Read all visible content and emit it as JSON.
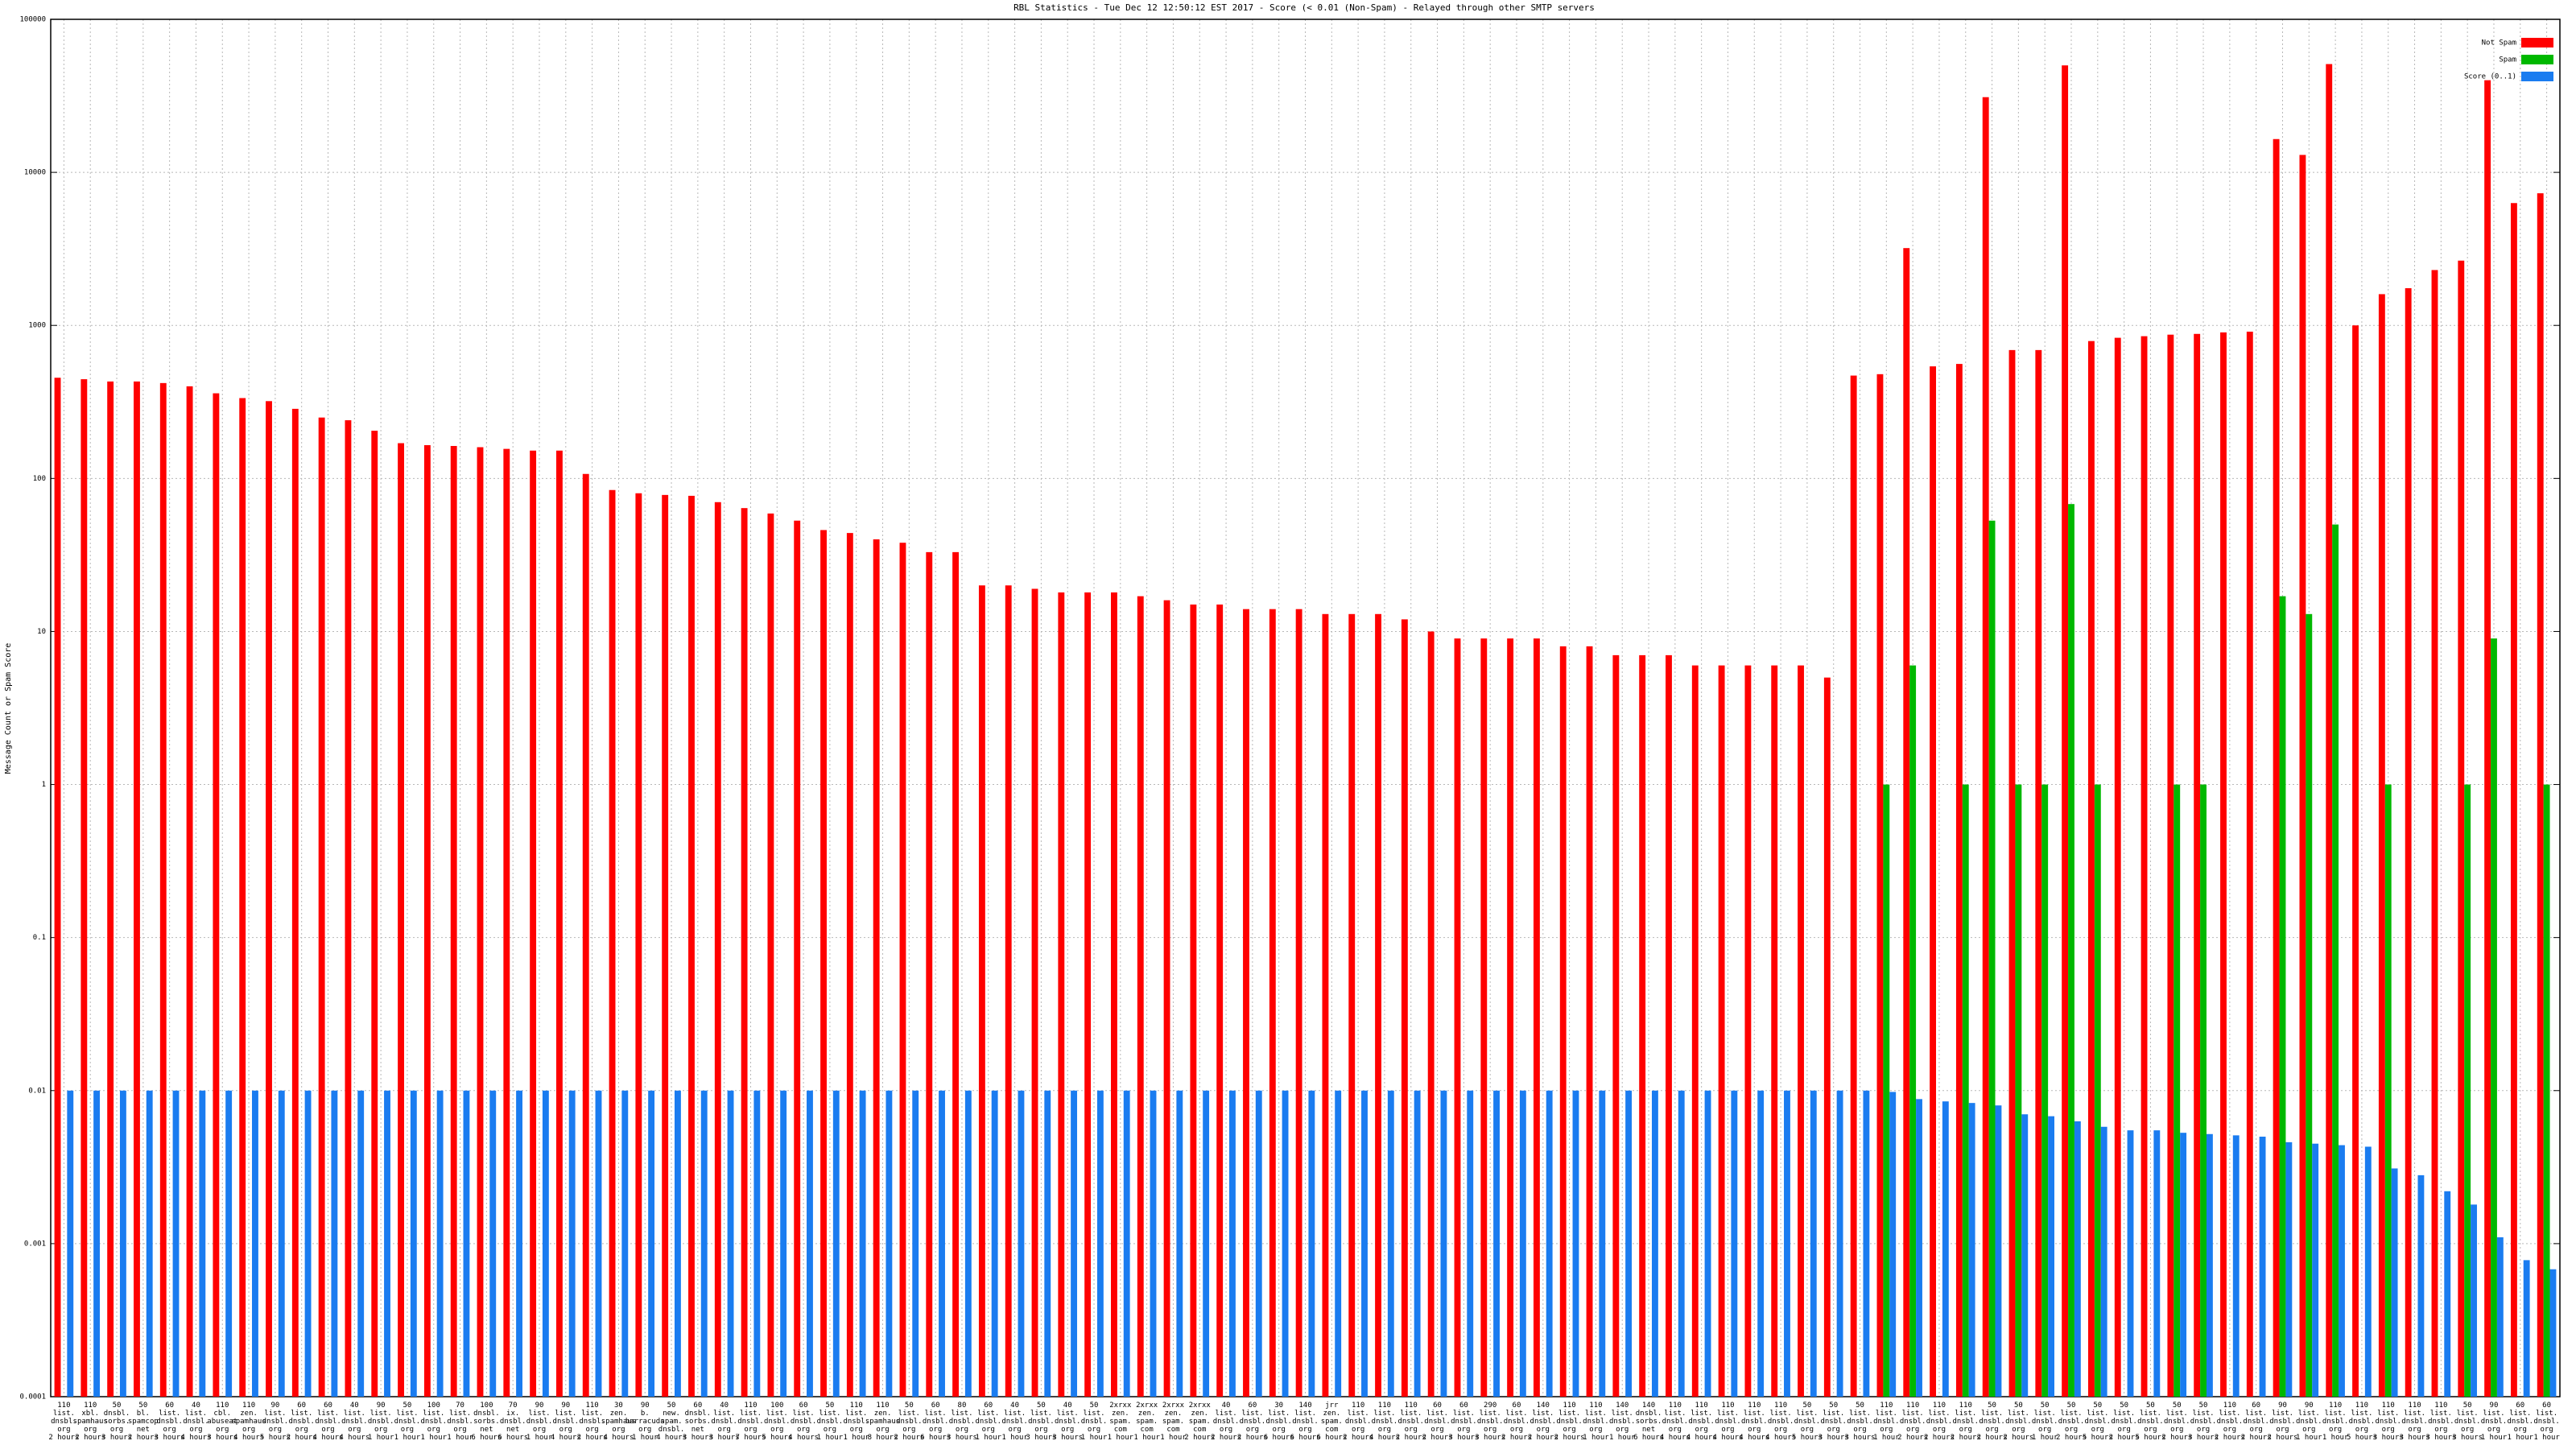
{
  "chart_data": {
    "type": "bar",
    "title": "RBL Statistics - Tue Dec 12 12:50:12 EST 2017 - Score (< 0.01 (Non-Spam) - Relayed through other SMTP servers",
    "ylabel": "Message Count or Spam Score",
    "log_scale": true,
    "grid": true,
    "legend": "upper right",
    "ylim": [
      0.0001,
      100000
    ],
    "yticks": [
      0.0001,
      0.001,
      0.01,
      0.1,
      1,
      10,
      100,
      1000,
      10000,
      100000
    ],
    "categories": [
      "110\nlist.\ndnsbl.\norg\n2 hours",
      "110\nxbl.\nspamhaus\norg\n2 hours",
      "50\ndnsbl.\nsorbs.\norg\n3 hours",
      "50\nbl.\nspamcop\nnet\n2 hours",
      "60\nlist.\ndnsbl.\norg\n3 hours",
      "40\nlist.\ndnsbl.\norg\n4 hours",
      "110\ncbl.\nabuseat\norg\n3 hours",
      "110\nzen.\nspamhaus\norg\n4 hours",
      "90\nlist.\ndnsbl.\norg\n5 hours",
      "60\nlist.\ndnsbl.\norg\n2 hours",
      "60\nlist.\ndnsbl.\norg\n4 hours",
      "40\nlist.\ndnsbl.\norg\n4 hours",
      "90\nlist.\ndnsbl.\norg\n1 hour",
      "50\nlist.\ndnsbl.\norg\n1 hour",
      "100\nlist.\ndnsbl.\norg\n1 hour",
      "70\nlist.\ndnsbl.\norg\n1 hour",
      "100\ndnsbl.\nsorbs.\nnet\n6 hours",
      "70\nix.\ndnsbl.\nnet\n6 hours",
      "90\nlist.\ndnsbl.\norg\n1 hour",
      "90\nlist.\ndnsbl.\norg\n4 hours",
      "110\nlist.\ndnsbl.\norg\n2 hours",
      "30\nzen.\nspamhaus\norg\n4 hours",
      "90\nb.\nbarracuda\norg\n1 hour",
      "50\nnew.\nspam.\ndnsbl.\n4 hours",
      "60\ndnsbl.\nsorbs.\nnet\n3 hours",
      "40\nlist.\ndnsbl.\norg\n3 hours",
      "110\nlist.\ndnsbl.\norg\n7 hours",
      "100\nlist.\ndnsbl.\norg\n5 hours",
      "60\nlist.\ndnsbl.\norg\n4 hours",
      "50\nlist.\ndnsbl.\norg\n1 hour",
      "110\nlist.\ndnsbl.\norg\n1 hour",
      "110\nzen.\nspamhaus\norg\n8 hours",
      "50\nlist.\ndnsbl.\norg\n2 hours",
      "60\nlist.\ndnsbl.\norg\n6 hours",
      "80\nlist.\ndnsbl.\norg\n3 hours",
      "60\nlist.\ndnsbl.\norg\n1 hour",
      "40\nlist.\ndnsbl.\norg\n1 hour",
      "50\nlist.\ndnsbl.\norg\n3 hours",
      "40\nlist.\ndnsbl.\norg\n3 hours",
      "50\nlist.\ndnsbl.\norg\n1 hour",
      "2xrxx\nzen.\nspam.\ncom\n1 hour",
      "2xrxx\nzen.\nspam.\ncom\n1 hour",
      "2xrxx\nzen.\nspam.\ncom\n1 hour",
      "2xrxx\nzen.\nspam.\ncom\n2 hours",
      "40\nlist.\ndnsbl.\norg\n2 hours",
      "60\nlist.\ndnsbl.\norg\n2 hours",
      "30\nlist.\ndnsbl.\norg\n6 hours",
      "140\nlist.\ndnsbl.\norg\n6 hours",
      "jrr\nzen.\nspam.\ncom\n6 hours",
      "110\nlist.\ndnsbl.\norg\n2 hours",
      "110\nlist.\ndnsbl.\norg\n4 hours",
      "110\nlist.\ndnsbl.\norg\n2 hours",
      "60\nlist.\ndnsbl.\norg\n2 hours",
      "60\nlist.\ndnsbl.\norg\n3 hours",
      "290\nlist.\ndnsbl.\norg\n3 hours",
      "60\nlist.\ndnsbl.\norg\n2 hours",
      "140\nlist.\ndnsbl.\norg\n2 hours",
      "110\nlist.\ndnsbl.\norg\n2 hours",
      "110\nlist.\ndnsbl.\norg\n1 hour",
      "140\nlist.\ndnsbl.\norg\n1 hour",
      "140\ndnsbl.\nsorbs.\nnet\n6 hours",
      "110\nlist.\ndnsbl.\norg\n4 hours",
      "110\nlist.\ndnsbl.\norg\n4 hours",
      "110\nlist.\ndnsbl.\norg\n4 hours",
      "110\nlist.\ndnsbl.\norg\n4 hours",
      "110\nlist.\ndnsbl.\norg\n4 hours",
      "50\nlist.\ndnsbl.\norg\n5 hours",
      "50\nlist.\ndnsbl.\norg\n3 hours",
      "50\nlist.\ndnsbl.\norg\n3 hours",
      "110\nlist.\ndnsbl.\norg\n1 hour",
      "110\nlist.\ndnsbl.\norg\n2 hours",
      "110\nlist.\ndnsbl.\norg\n2 hours",
      "110\nlist.\ndnsbl.\norg\n2 hours",
      "50\nlist.\ndnsbl.\norg\n2 hours",
      "50\nlist.\ndnsbl.\norg\n2 hours",
      "50\nlist.\ndnsbl.\norg\n1 hour",
      "50\nlist.\ndnsbl.\norg\n2 hours",
      "50\nlist.\ndnsbl.\norg\n5 hours",
      "50\nlist.\ndnsbl.\norg\n2 hours",
      "50\nlist.\ndnsbl.\norg\n5 hours",
      "50\nlist.\ndnsbl.\norg\n2 hours",
      "50\nlist.\ndnsbl.\norg\n3 hours",
      "110\nlist.\ndnsbl.\norg\n2 hours",
      "60\nlist.\ndnsbl.\norg\n2 hours",
      "90\nlist.\ndnsbl.\norg\n2 hours",
      "90\nlist.\ndnsbl.\norg\n1 hour",
      "110\nlist.\ndnsbl.\norg\n1 hour",
      "110\nlist.\ndnsbl.\norg\n5 hours",
      "110\nlist.\ndnsbl.\norg\n3 hours",
      "110\nlist.\ndnsbl.\norg\n3 hours",
      "110\nlist.\ndnsbl.\norg\n3 hours",
      "50\nlist.\ndnsbl.\norg\n3 hours",
      "90\nlist.\ndnsbl.\norg\n1 hour",
      "60\nlist.\ndnsbl.\norg\n1 hour",
      "60\nlist.\ndnsbl.\norg\n1 hour"
    ],
    "series": [
      {
        "name": "Not Spam",
        "color": "#ff0000",
        "values": [
          455,
          445,
          430,
          430,
          420,
          400,
          360,
          335,
          320,
          285,
          250,
          240,
          205,
          170,
          165,
          163,
          160,
          156,
          152,
          152,
          107,
          84,
          80,
          78,
          77,
          70,
          64,
          59,
          53,
          46,
          44,
          40,
          38,
          33,
          33,
          20,
          20,
          19,
          18,
          18,
          18,
          17,
          16,
          15,
          15,
          14,
          14,
          14,
          13,
          13,
          13,
          12,
          10,
          9,
          9,
          9,
          9,
          8,
          8,
          7,
          7,
          7,
          6,
          6,
          6,
          6,
          6,
          5,
          470,
          480,
          3200,
          540,
          560,
          31000,
          690,
          690,
          50000,
          790,
          830,
          850,
          870,
          880,
          900,
          910,
          16500,
          13000,
          51000,
          1000,
          1600,
          1750,
          2300,
          2650,
          40000,
          6300,
          7300
        ]
      },
      {
        "name": "Spam",
        "color": "#00b800",
        "values": [
          null,
          null,
          null,
          null,
          null,
          null,
          null,
          null,
          null,
          null,
          null,
          null,
          null,
          null,
          null,
          null,
          null,
          null,
          null,
          null,
          null,
          null,
          null,
          null,
          null,
          null,
          null,
          null,
          null,
          null,
          null,
          null,
          null,
          null,
          null,
          null,
          null,
          null,
          null,
          null,
          null,
          null,
          null,
          null,
          null,
          null,
          null,
          null,
          null,
          null,
          null,
          null,
          null,
          null,
          null,
          null,
          null,
          null,
          null,
          null,
          null,
          null,
          null,
          null,
          null,
          null,
          null,
          null,
          null,
          1,
          6,
          null,
          1,
          53,
          1,
          1,
          68,
          1,
          null,
          null,
          1,
          1,
          null,
          null,
          17,
          13,
          50,
          null,
          1,
          null,
          null,
          1,
          9,
          null,
          1
        ]
      },
      {
        "name": "Score (0..1)",
        "color": "#1a7cf0",
        "values": [
          0.01,
          0.01,
          0.01,
          0.01,
          0.01,
          0.01,
          0.01,
          0.01,
          0.01,
          0.01,
          0.01,
          0.01,
          0.01,
          0.01,
          0.01,
          0.01,
          0.01,
          0.01,
          0.01,
          0.01,
          0.01,
          0.01,
          0.01,
          0.01,
          0.01,
          0.01,
          0.01,
          0.01,
          0.01,
          0.01,
          0.01,
          0.01,
          0.01,
          0.01,
          0.01,
          0.01,
          0.01,
          0.01,
          0.01,
          0.01,
          0.01,
          0.01,
          0.01,
          0.01,
          0.01,
          0.01,
          0.01,
          0.01,
          0.01,
          0.01,
          0.01,
          0.01,
          0.01,
          0.01,
          0.01,
          0.01,
          0.01,
          0.01,
          0.01,
          0.01,
          0.01,
          0.01,
          0.01,
          0.01,
          0.01,
          0.01,
          0.01,
          0.01,
          0.01,
          0.0098,
          0.0088,
          0.0085,
          0.0083,
          0.008,
          0.007,
          0.0068,
          0.0063,
          0.0058,
          0.0055,
          0.0055,
          0.0053,
          0.0052,
          0.0051,
          0.005,
          0.0046,
          0.0045,
          0.0044,
          0.0043,
          0.0031,
          0.0028,
          0.0022,
          0.0018,
          0.0011,
          0.00078,
          0.00068
        ]
      }
    ]
  }
}
